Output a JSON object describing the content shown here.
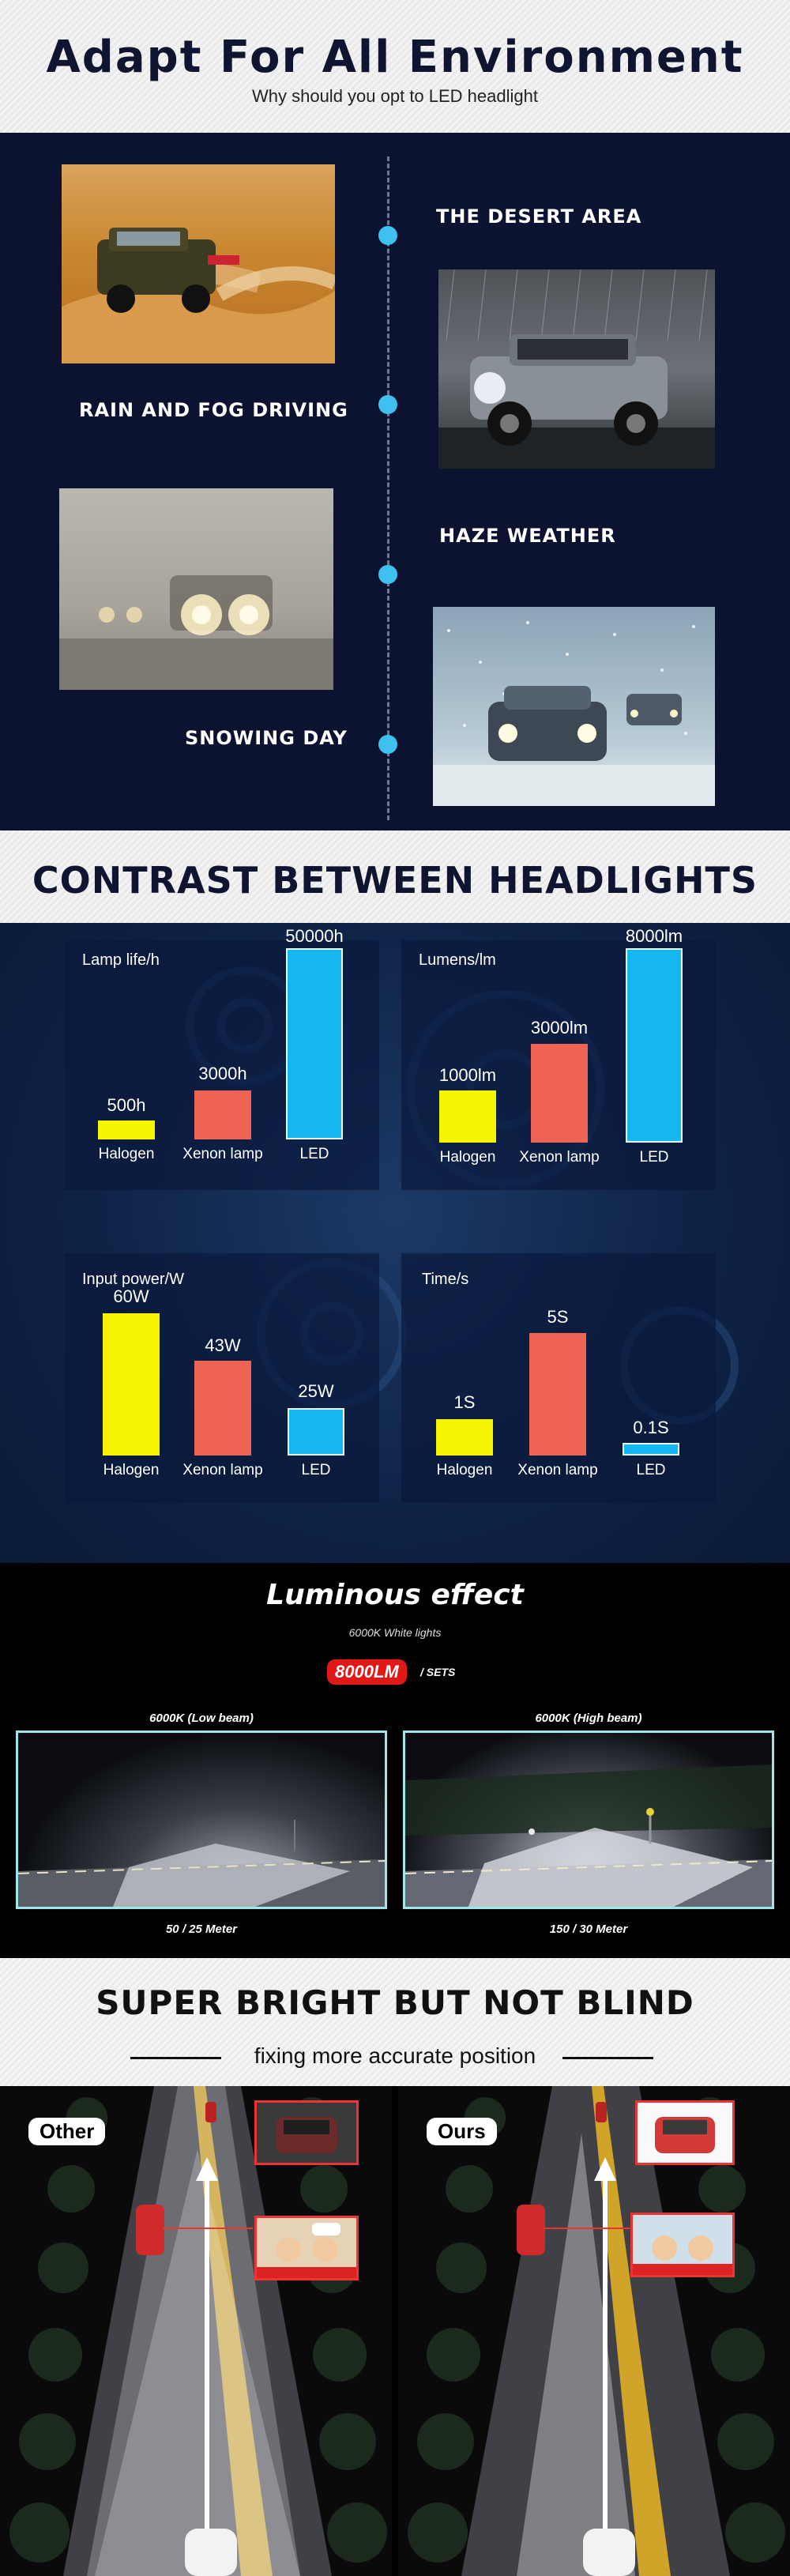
{
  "section_environment": {
    "title": "Adapt For All Environment",
    "subtitle": "Why should you opt to LED headlight",
    "items": [
      {
        "label": "THE DESERT AREA"
      },
      {
        "label": "RAIN AND FOG DRIVING"
      },
      {
        "label": "HAZE WEATHER"
      },
      {
        "label": "SNOWING DAY"
      }
    ]
  },
  "section_contrast": {
    "title": "CONTRAST BETWEEN HEADLIGHTS",
    "colors": {
      "halogen": "#f6f400",
      "xenon": "#ee6352",
      "led": "#15b7f0"
    }
  },
  "chart_data": [
    {
      "type": "bar",
      "title": "Lamp life/h",
      "categories": [
        "Halogen",
        "Xenon lamp",
        "LED"
      ],
      "values": [
        500,
        3000,
        50000
      ],
      "labels": [
        "500h",
        "3000h",
        "50000h"
      ]
    },
    {
      "type": "bar",
      "title": "Lumens/lm",
      "categories": [
        "Halogen",
        "Xenon lamp",
        "LED"
      ],
      "values": [
        1000,
        3000,
        8000
      ],
      "labels": [
        "1000lm",
        "3000lm",
        "8000lm"
      ]
    },
    {
      "type": "bar",
      "title": "Input power/W",
      "categories": [
        "Halogen",
        "Xenon lamp",
        "LED"
      ],
      "values": [
        60,
        43,
        25
      ],
      "labels": [
        "60W",
        "43W",
        "25W"
      ]
    },
    {
      "type": "bar",
      "title": "Time/s",
      "categories": [
        "Halogen",
        "Xenon lamp",
        "LED"
      ],
      "values": [
        1,
        5,
        0.1
      ],
      "labels": [
        "1S",
        "5S",
        "0.1S"
      ]
    }
  ],
  "section_luminous": {
    "title": "Luminous effect",
    "subtitle": "6000K  White lights",
    "badge": "8000LM",
    "badge_suffix": "/ SETS",
    "low_beam": {
      "label": "6000K (Low beam)",
      "distance": "50 / 25 Meter"
    },
    "high_beam": {
      "label": "6000K (High beam)",
      "distance": "150  /  30 Meter"
    }
  },
  "section_bright": {
    "title": "SUPER BRIGHT BUT NOT BLIND",
    "subtitle": "fixing more accurate position",
    "other_label": "Other",
    "ours_label": "Ours"
  }
}
